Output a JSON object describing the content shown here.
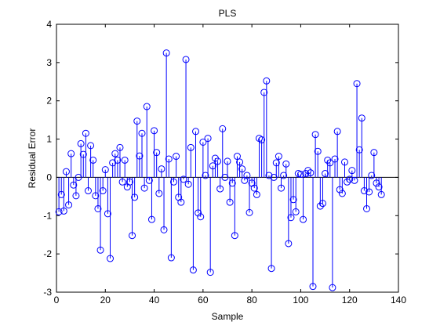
{
  "chart_data": {
    "type": "stem",
    "title": "PLS",
    "xlabel": "Sample",
    "ylabel": "Residual Error",
    "xlim": [
      0,
      140
    ],
    "ylim": [
      -3,
      4
    ],
    "xticks": [
      0,
      20,
      40,
      60,
      80,
      100,
      120,
      140
    ],
    "yticks": [
      -3,
      -2,
      -1,
      0,
      1,
      2,
      3,
      4
    ],
    "grid": false,
    "color": "#0000ff",
    "series": [
      {
        "x": [
          1,
          2,
          3,
          4,
          5,
          6,
          7,
          8,
          9,
          10,
          11,
          12,
          13,
          14,
          15,
          16,
          17,
          18,
          19,
          20,
          21,
          22,
          23,
          24,
          25,
          26,
          27,
          28,
          29,
          30,
          31,
          32,
          33,
          34,
          35,
          36,
          37,
          38,
          39,
          40,
          41,
          42,
          43,
          44,
          45,
          46,
          47,
          48,
          49,
          50,
          51,
          52,
          53,
          54,
          55,
          56,
          57,
          58,
          59,
          60,
          61,
          62,
          63,
          64,
          65,
          66,
          67,
          68,
          69,
          70,
          71,
          72,
          73,
          74,
          75,
          76,
          77,
          78,
          79,
          80,
          81,
          82,
          83,
          84,
          85,
          86,
          87,
          88,
          89,
          90,
          91,
          92,
          93,
          94,
          95,
          96,
          97,
          98,
          99,
          100,
          101,
          102,
          103,
          104,
          105,
          106,
          107,
          108,
          109,
          110,
          111,
          112,
          113,
          114,
          115,
          116,
          117,
          118,
          119,
          120,
          121,
          122,
          123,
          124,
          125,
          126,
          127,
          128,
          129,
          130,
          131,
          132,
          133
        ],
        "y": [
          -0.9,
          -0.45,
          -0.88,
          0.15,
          -0.72,
          0.62,
          -0.2,
          -0.48,
          0.0,
          0.88,
          0.6,
          1.15,
          -0.35,
          0.83,
          0.45,
          -0.48,
          -0.82,
          -1.9,
          -0.35,
          0.2,
          -0.95,
          -2.12,
          0.38,
          0.62,
          0.45,
          0.78,
          -0.12,
          0.45,
          -0.25,
          -0.12,
          -1.52,
          -0.52,
          1.47,
          0.56,
          1.15,
          -0.28,
          1.85,
          -0.08,
          -1.1,
          1.22,
          0.65,
          -0.42,
          0.22,
          -1.37,
          3.25,
          0.48,
          -2.1,
          -0.12,
          0.55,
          -0.52,
          -0.65,
          -0.05,
          3.08,
          -0.18,
          0.78,
          -2.42,
          1.2,
          -0.93,
          -1.03,
          0.92,
          0.05,
          1.02,
          -2.48,
          0.3,
          0.5,
          0.42,
          -0.3,
          1.27,
          0.0,
          0.42,
          -0.65,
          -0.15,
          -1.52,
          0.55,
          0.4,
          0.22,
          -0.08,
          0.05,
          -0.92,
          -0.15,
          -0.28,
          -0.45,
          1.02,
          0.98,
          2.22,
          2.52,
          0.05,
          -2.38,
          0.0,
          0.38,
          0.55,
          -0.28,
          0.05,
          0.35,
          -1.73,
          -1.05,
          -0.58,
          -0.9,
          0.1,
          0.08,
          -1.1,
          0.1,
          0.18,
          0.12,
          -2.85,
          1.12,
          0.68,
          -0.75,
          -0.68,
          0.1,
          0.45,
          0.38,
          -2.88,
          0.48,
          1.2,
          -0.32,
          -0.42,
          0.4,
          -0.12,
          -0.05,
          0.18,
          -0.08,
          2.45,
          0.72,
          1.55,
          -0.35,
          -0.82,
          -0.38,
          0.05,
          0.65,
          -0.15,
          -0.25,
          -0.45
        ]
      }
    ]
  }
}
